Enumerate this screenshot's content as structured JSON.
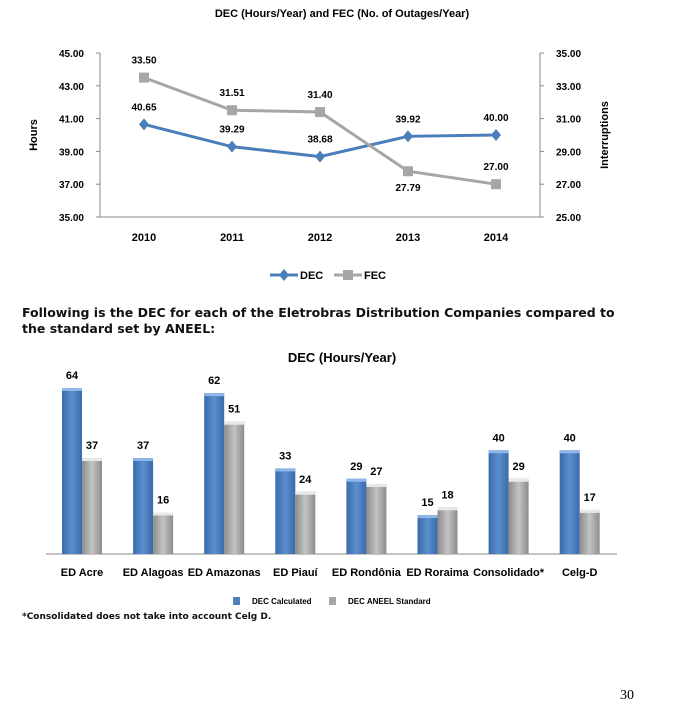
{
  "chart_data": [
    {
      "type": "line",
      "title": "DEC (Hours/Year) and FEC (No. of Outages/Year)",
      "categories": [
        "2010",
        "2011",
        "2012",
        "2013",
        "2014"
      ],
      "ylabel": "Hours",
      "y2label": "Interruptions",
      "ylim": [
        35,
        45
      ],
      "y2lim": [
        25,
        35
      ],
      "yticks": [
        "35.00",
        "37.00",
        "39.00",
        "41.00",
        "43.00",
        "45.00"
      ],
      "y2ticks": [
        "25.00",
        "27.00",
        "29.00",
        "31.00",
        "33.00",
        "35.00"
      ],
      "series": [
        {
          "name": "DEC",
          "axis": "left",
          "color": "#4a7ebb",
          "values": [
            40.65,
            39.29,
            38.68,
            39.92,
            40.0
          ],
          "labels": [
            "40.65",
            "39.29",
            "38.68",
            "39.92",
            "40.00"
          ]
        },
        {
          "name": "FEC",
          "axis": "right",
          "color": "#a6a6a6",
          "values": [
            33.5,
            31.51,
            31.4,
            27.79,
            27.0
          ],
          "labels": [
            "33.50",
            "31.51",
            "31.40",
            "27.79",
            "27.00"
          ]
        }
      ],
      "legend": "bottom"
    },
    {
      "type": "bar",
      "title": "DEC (Hours/Year)",
      "categories": [
        "ED Acre",
        "ED Alagoas",
        "ED Amazonas",
        "ED Piauí",
        "ED Rondônia",
        "ED Roraima",
        "Consolidado*",
        "Celg-D"
      ],
      "series": [
        {
          "name": "DEC Calculated",
          "color": "#4f81bd",
          "values": [
            64,
            37,
            62,
            33,
            29,
            15,
            40,
            40
          ]
        },
        {
          "name": "DEC ANEEL Standard",
          "color": "#a6a6a6",
          "values": [
            37,
            16,
            51,
            24,
            27,
            18,
            29,
            17
          ]
        }
      ],
      "ylim": [
        0,
        70
      ],
      "legend": "bottom"
    }
  ],
  "text": {
    "paragraph": "Following is the DEC for each of the Eletrobras Distribution Companies compared to the standard set by ANEEL:",
    "footnote": "*Consolidated does not take into account Celg D.",
    "page_number": "30"
  }
}
